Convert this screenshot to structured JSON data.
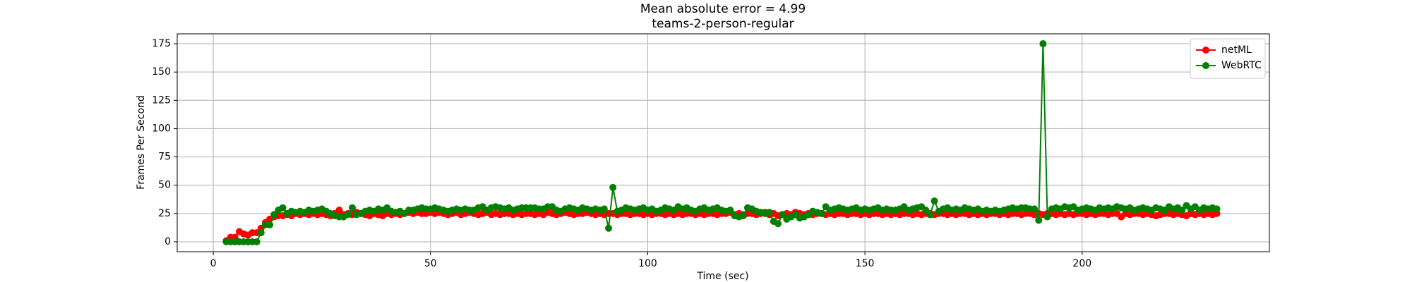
{
  "chart_data": {
    "type": "line",
    "title": "Mean absolute error = 4.99",
    "subtitle": "teams-2-person-regular",
    "x_label": "Time (sec)",
    "y_label": "Frames Per Second",
    "xlim": [
      -8.3,
      243.1
    ],
    "ylim": [
      -8.75,
      183.75
    ],
    "xticks": [
      0,
      50,
      100,
      150,
      200
    ],
    "yticks": [
      0,
      25,
      50,
      75,
      100,
      125,
      150,
      175
    ],
    "grid": true,
    "legend": "upper right",
    "x": [
      3,
      4,
      5,
      6,
      7,
      8,
      9,
      10,
      11,
      12,
      13,
      14,
      15,
      16,
      17,
      18,
      19,
      20,
      21,
      22,
      23,
      24,
      25,
      26,
      27,
      28,
      29,
      30,
      31,
      32,
      33,
      34,
      35,
      36,
      37,
      38,
      39,
      40,
      41,
      42,
      43,
      44,
      45,
      46,
      47,
      48,
      49,
      50,
      51,
      52,
      53,
      54,
      55,
      56,
      57,
      58,
      59,
      60,
      61,
      62,
      63,
      64,
      65,
      66,
      67,
      68,
      69,
      70,
      71,
      72,
      73,
      74,
      75,
      76,
      77,
      78,
      79,
      80,
      81,
      82,
      83,
      84,
      85,
      86,
      87,
      88,
      89,
      90,
      91,
      92,
      93,
      94,
      95,
      96,
      97,
      98,
      99,
      100,
      101,
      102,
      103,
      104,
      105,
      106,
      107,
      108,
      109,
      110,
      111,
      112,
      113,
      114,
      115,
      116,
      117,
      118,
      119,
      120,
      121,
      122,
      123,
      124,
      125,
      126,
      127,
      128,
      129,
      130,
      131,
      132,
      133,
      134,
      135,
      136,
      137,
      138,
      139,
      140,
      141,
      142,
      143,
      144,
      145,
      146,
      147,
      148,
      149,
      150,
      151,
      152,
      153,
      154,
      155,
      156,
      157,
      158,
      159,
      160,
      161,
      162,
      163,
      164,
      165,
      166,
      167,
      168,
      169,
      170,
      171,
      172,
      173,
      174,
      175,
      176,
      177,
      178,
      179,
      180,
      181,
      182,
      183,
      184,
      185,
      186,
      187,
      188,
      189,
      190,
      191,
      192,
      193,
      194,
      195,
      196,
      197,
      198,
      199,
      200,
      201,
      202,
      203,
      204,
      205,
      206,
      207,
      208,
      209,
      210,
      211,
      212,
      213,
      214,
      215,
      216,
      217,
      218,
      219,
      220,
      221,
      222,
      223,
      224,
      225,
      226,
      227,
      228,
      229,
      230,
      231
    ],
    "series": [
      {
        "name": "netML",
        "color": "#ff0000",
        "values": [
          1,
          4,
          4,
          9,
          7,
          6,
          8,
          8,
          12,
          17,
          20,
          22,
          23,
          23,
          24,
          23,
          25,
          24,
          25,
          24,
          25,
          24,
          25,
          24,
          23,
          25,
          28,
          24,
          25,
          24,
          26,
          25,
          24,
          23,
          25,
          24,
          23,
          25,
          24,
          25,
          24,
          25,
          26,
          25,
          26,
          25,
          25,
          26,
          25,
          26,
          25,
          24,
          25,
          26,
          24,
          25,
          26,
          25,
          24,
          25,
          26,
          24,
          25,
          24,
          25,
          25,
          24,
          25,
          24,
          25,
          25,
          24,
          25,
          24,
          26,
          25,
          24,
          25,
          26,
          25,
          24,
          25,
          25,
          26,
          25,
          24,
          25,
          24,
          25,
          25,
          24,
          25,
          25,
          24,
          25,
          25,
          24,
          25,
          24,
          25,
          25,
          24,
          25,
          24,
          25,
          24,
          25,
          25,
          24,
          25,
          24,
          25,
          25,
          24,
          25,
          25,
          26,
          24,
          25,
          24,
          25,
          25,
          24,
          25,
          26,
          24,
          25,
          23,
          24,
          25,
          24,
          26,
          25,
          24,
          25,
          24,
          25,
          25,
          24,
          25,
          24,
          25,
          25,
          24,
          25,
          25,
          24,
          25,
          24,
          25,
          25,
          24,
          25,
          24,
          25,
          24,
          25,
          25,
          24,
          25,
          24,
          25,
          25,
          24,
          25,
          25,
          24,
          25,
          24,
          25,
          25,
          24,
          25,
          24,
          25,
          24,
          25,
          25,
          24,
          25,
          24,
          25,
          25,
          24,
          25,
          25,
          24,
          25,
          24,
          25,
          25,
          24,
          25,
          24,
          25,
          24,
          25,
          25,
          24,
          25,
          24,
          25,
          25,
          24,
          25,
          25,
          22,
          25,
          24,
          25,
          25,
          24,
          25,
          24,
          23,
          24,
          25,
          25,
          24,
          25,
          24,
          23,
          25,
          24,
          25,
          24,
          25,
          24,
          25
        ]
      },
      {
        "name": "WebRTC",
        "color": "#008000",
        "values": [
          0,
          0,
          0,
          0,
          0,
          0,
          0,
          0,
          8,
          15,
          15,
          24,
          28,
          30,
          25,
          27,
          26,
          27,
          26,
          28,
          27,
          28,
          29,
          27,
          25,
          23,
          22,
          22,
          24,
          30,
          24,
          25,
          27,
          28,
          27,
          29,
          28,
          30,
          27,
          26,
          27,
          25,
          28,
          28,
          29,
          30,
          29,
          29,
          30,
          29,
          28,
          27,
          28,
          29,
          28,
          29,
          28,
          28,
          30,
          31,
          28,
          30,
          31,
          30,
          29,
          30,
          28,
          29,
          30,
          30,
          30,
          30,
          29,
          29,
          31,
          31,
          28,
          27,
          29,
          30,
          29,
          28,
          30,
          29,
          28,
          29,
          28,
          29,
          12,
          48,
          27,
          28,
          30,
          29,
          28,
          29,
          30,
          28,
          29,
          27,
          28,
          30,
          29,
          28,
          31,
          29,
          30,
          28,
          27,
          29,
          30,
          28,
          29,
          30,
          28,
          27,
          28,
          23,
          22,
          23,
          30,
          29,
          27,
          26,
          25,
          26,
          18,
          16,
          24,
          20,
          22,
          24,
          21,
          22,
          24,
          27,
          26,
          25,
          31,
          28,
          29,
          30,
          29,
          28,
          29,
          30,
          28,
          29,
          28,
          29,
          30,
          28,
          29,
          28,
          28,
          29,
          31,
          28,
          29,
          30,
          31,
          28,
          24,
          36,
          27,
          29,
          30,
          28,
          29,
          28,
          30,
          29,
          28,
          29,
          27,
          28,
          27,
          28,
          27,
          28,
          29,
          30,
          29,
          30,
          30,
          29,
          29,
          19,
          175,
          22,
          29,
          30,
          29,
          31,
          30,
          31,
          28,
          29,
          30,
          29,
          28,
          30,
          29,
          30,
          29,
          31,
          30,
          29,
          30,
          28,
          29,
          30,
          29,
          28,
          30,
          29,
          28,
          31,
          29,
          30,
          28,
          32,
          29,
          31,
          28,
          30,
          29,
          30,
          29
        ]
      }
    ]
  }
}
